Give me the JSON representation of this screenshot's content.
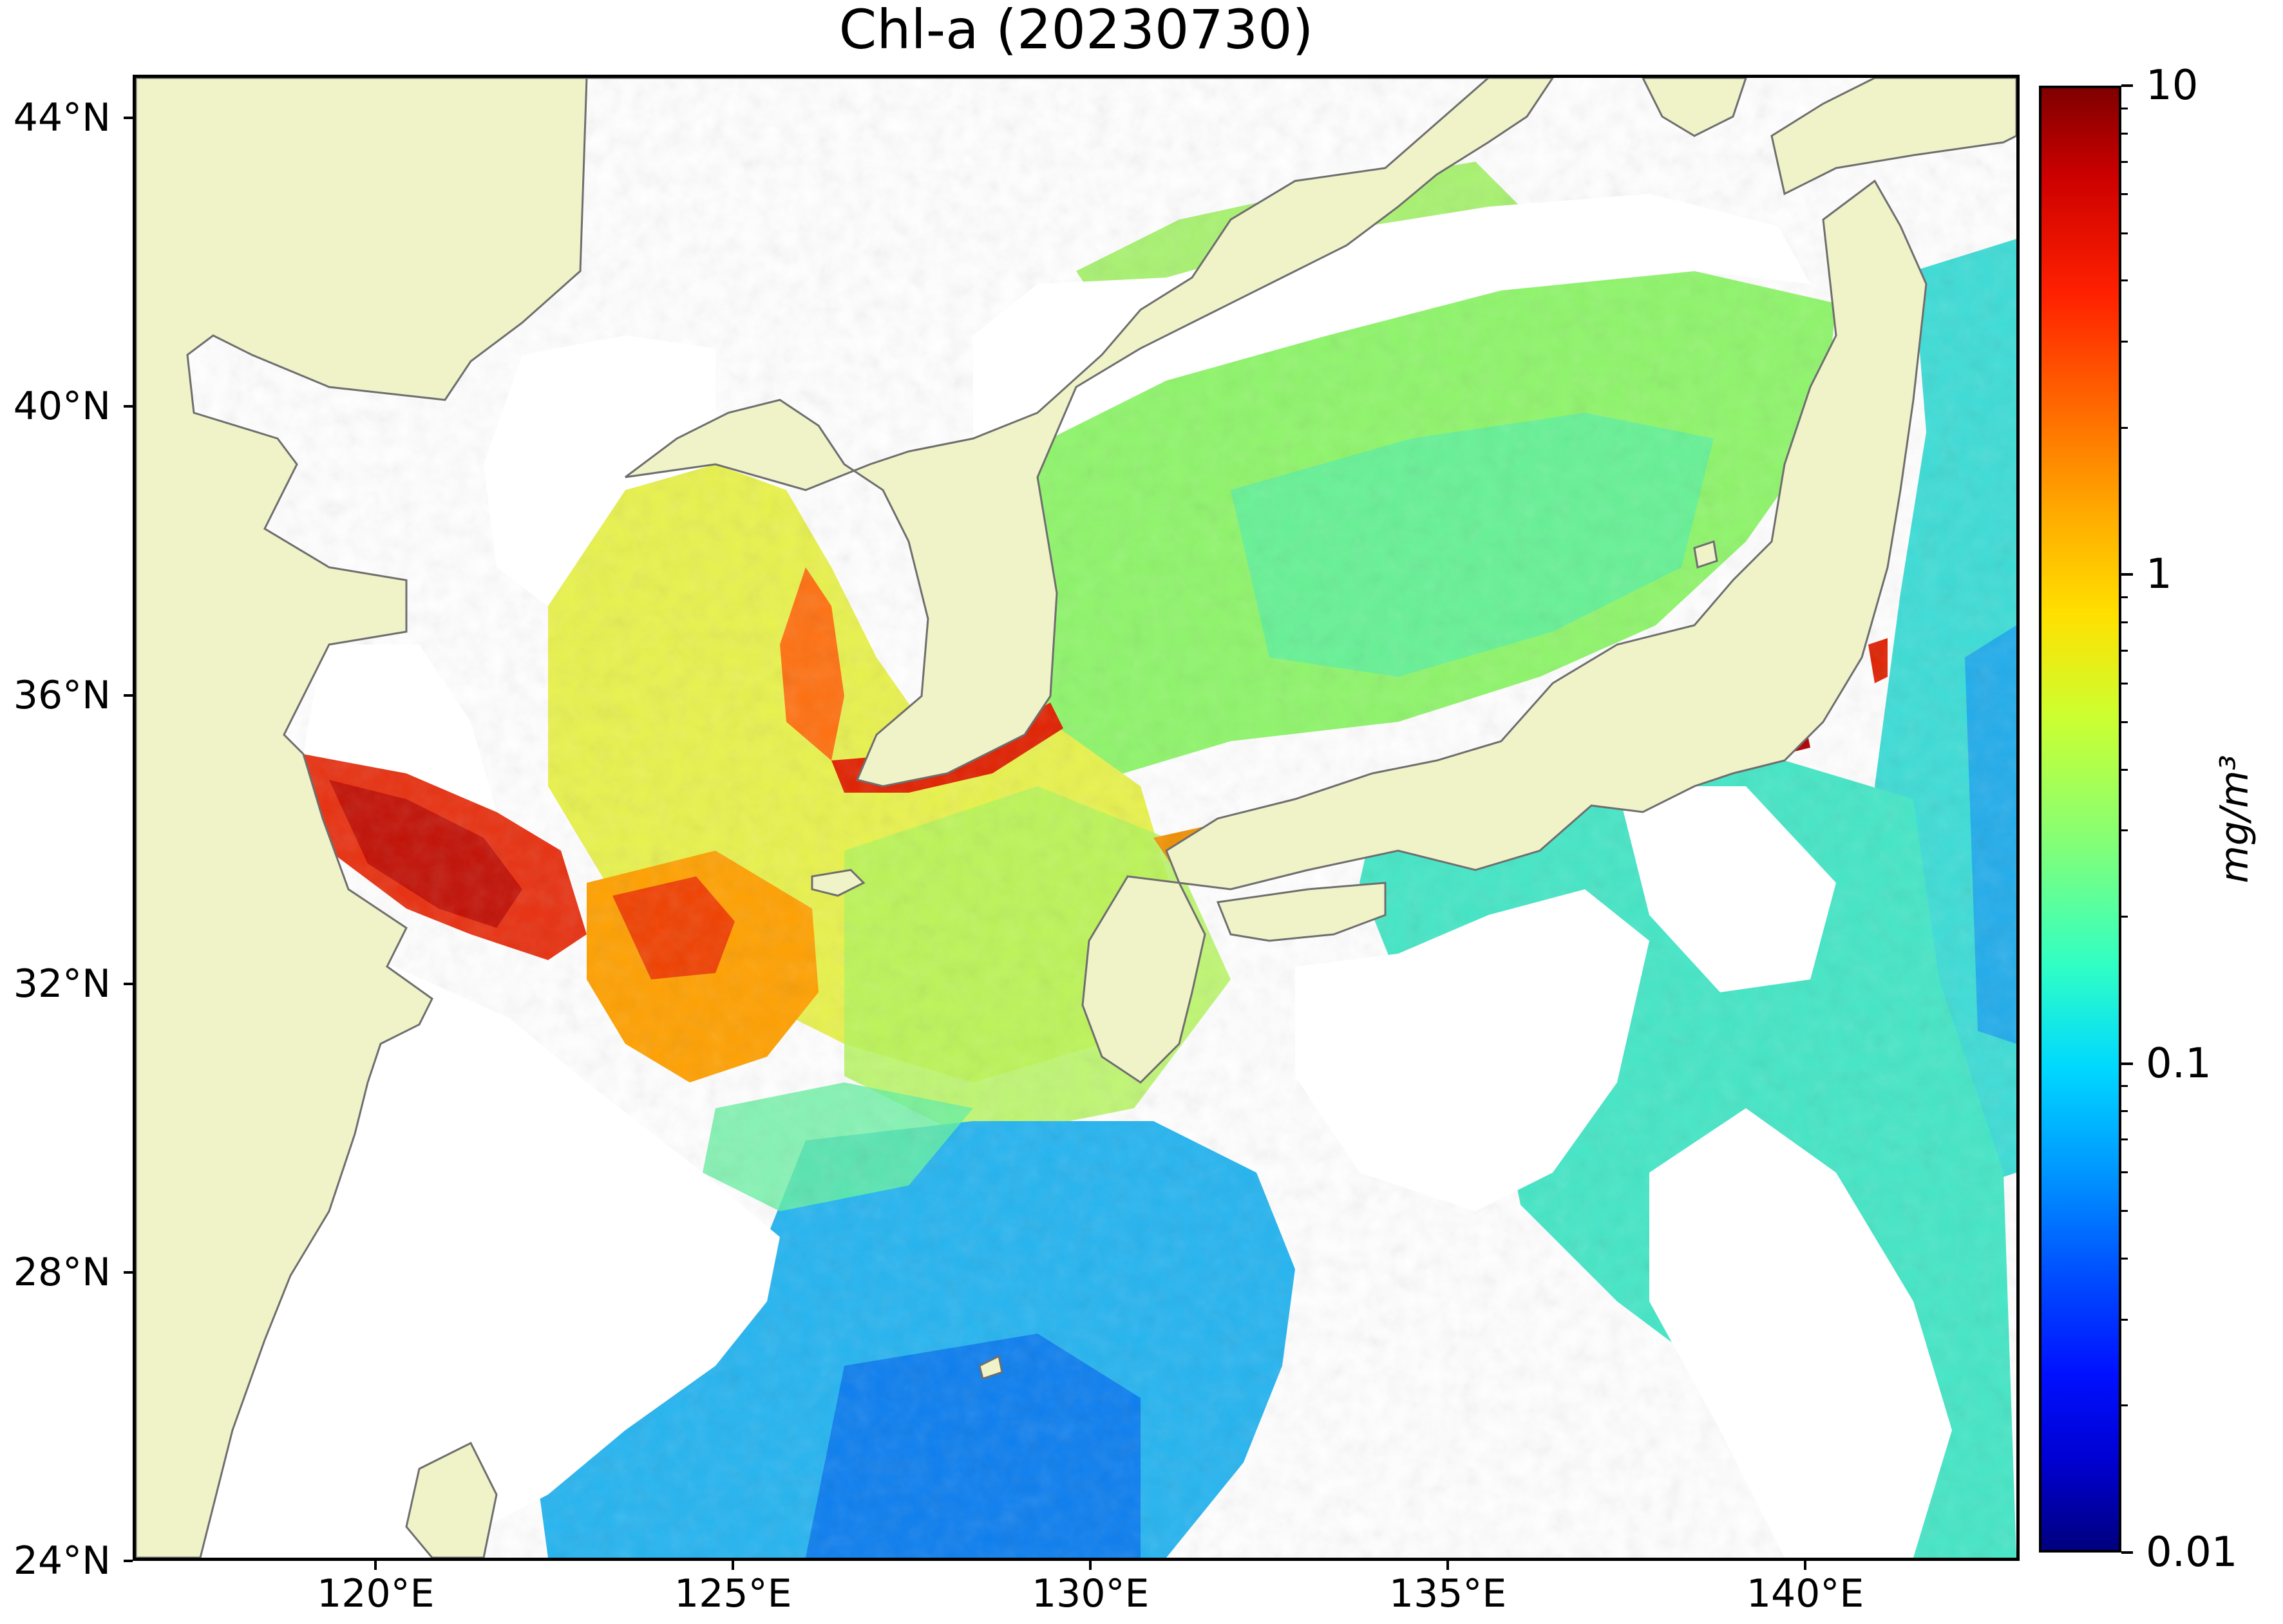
{
  "title": "Chl-a (20230730)",
  "map": {
    "extent": {
      "lon_min": 116.6,
      "lon_max": 143,
      "lat_min": 24,
      "lat_max": 44.6
    },
    "lat_ticks": [
      {
        "value": 44,
        "label": "44°N"
      },
      {
        "value": 40,
        "label": "40°N"
      },
      {
        "value": 36,
        "label": "36°N"
      },
      {
        "value": 32,
        "label": "32°N"
      },
      {
        "value": 28,
        "label": "28°N"
      },
      {
        "value": 24,
        "label": "24°N"
      }
    ],
    "lon_ticks": [
      {
        "value": 120,
        "label": "120°E"
      },
      {
        "value": 125,
        "label": "125°E"
      },
      {
        "value": 130,
        "label": "130°E"
      },
      {
        "value": 135,
        "label": "135°E"
      },
      {
        "value": 140,
        "label": "140°E"
      }
    ],
    "colors": {
      "land": "#f0f3c8",
      "coastline": "#6e6e6e",
      "no_data": "#ffffff"
    }
  },
  "colorbar": {
    "scale": "log",
    "min": 0.01,
    "max": 10,
    "colormap": "jet",
    "unit_label": "mg/m³",
    "ticks": [
      {
        "value": 10,
        "label": "10"
      },
      {
        "value": 1,
        "label": "1"
      },
      {
        "value": 0.1,
        "label": "0.1"
      },
      {
        "value": 0.01,
        "label": "0.01"
      }
    ]
  }
}
